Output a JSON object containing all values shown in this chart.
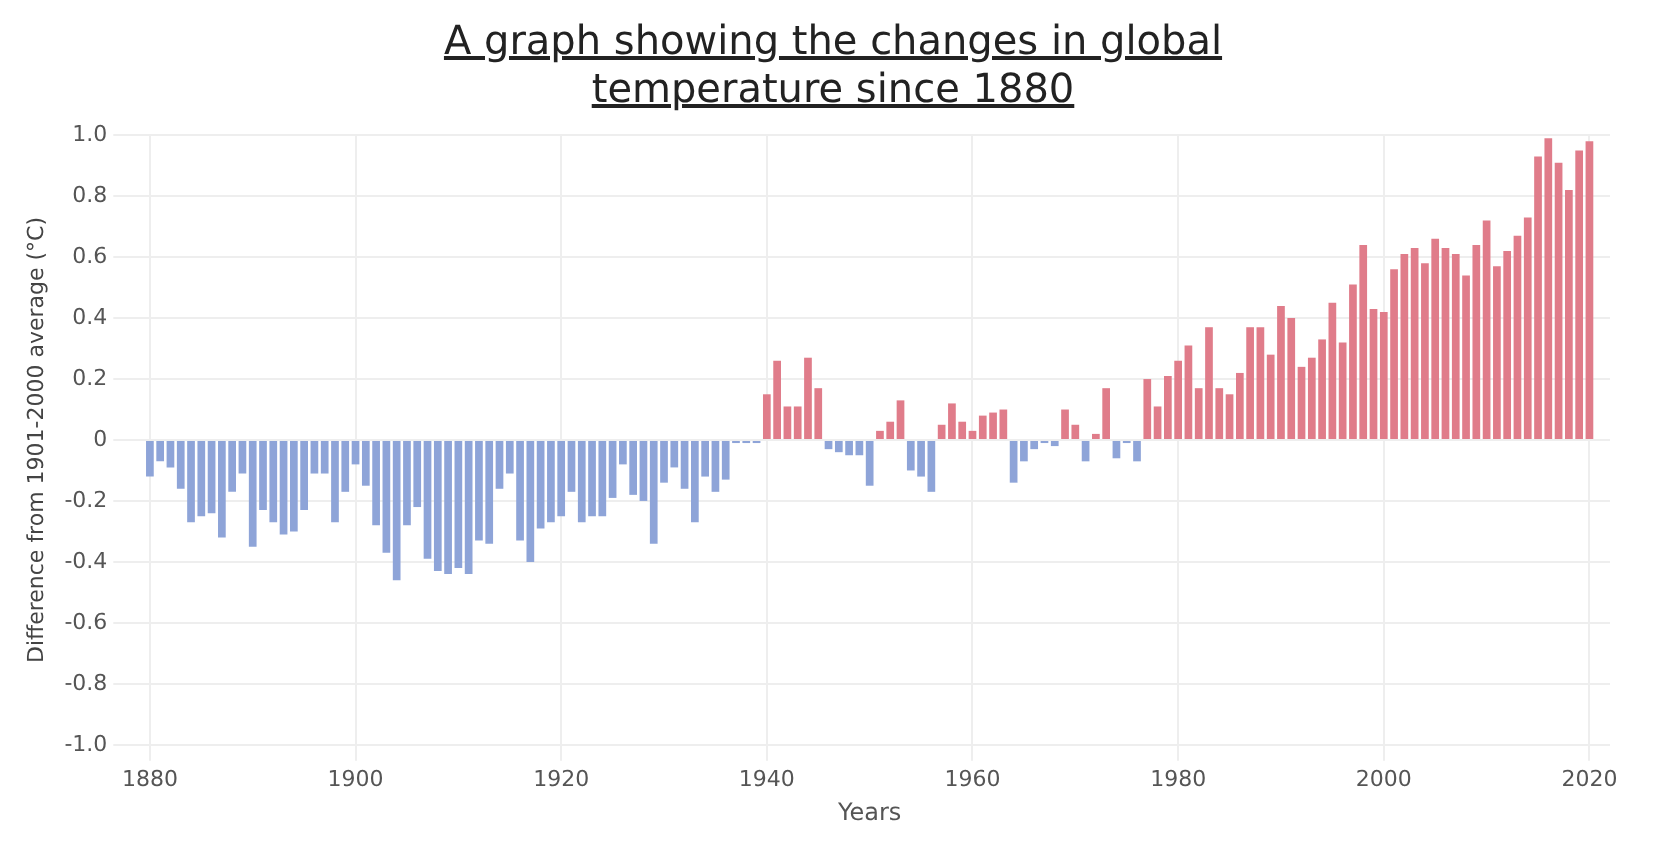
{
  "chart_data": {
    "type": "bar",
    "title": "A graph showing the changes in global temperature since 1880",
    "xlabel": "Years",
    "ylabel": "Difference from 1901-2000 average (°C)",
    "x": [
      1880,
      1881,
      1882,
      1883,
      1884,
      1885,
      1886,
      1887,
      1888,
      1889,
      1890,
      1891,
      1892,
      1893,
      1894,
      1895,
      1896,
      1897,
      1898,
      1899,
      1900,
      1901,
      1902,
      1903,
      1904,
      1905,
      1906,
      1907,
      1908,
      1909,
      1910,
      1911,
      1912,
      1913,
      1914,
      1915,
      1916,
      1917,
      1918,
      1919,
      1920,
      1921,
      1922,
      1923,
      1924,
      1925,
      1926,
      1927,
      1928,
      1929,
      1930,
      1931,
      1932,
      1933,
      1934,
      1935,
      1936,
      1937,
      1938,
      1939,
      1940,
      1941,
      1942,
      1943,
      1944,
      1945,
      1946,
      1947,
      1948,
      1949,
      1950,
      1951,
      1952,
      1953,
      1954,
      1955,
      1956,
      1957,
      1958,
      1959,
      1960,
      1961,
      1962,
      1963,
      1964,
      1965,
      1966,
      1967,
      1968,
      1969,
      1970,
      1971,
      1972,
      1973,
      1974,
      1975,
      1976,
      1977,
      1978,
      1979,
      1980,
      1981,
      1982,
      1983,
      1984,
      1985,
      1986,
      1987,
      1988,
      1989,
      1990,
      1991,
      1992,
      1993,
      1994,
      1995,
      1996,
      1997,
      1998,
      1999,
      2000,
      2001,
      2002,
      2003,
      2004,
      2005,
      2006,
      2007,
      2008,
      2009,
      2010,
      2011,
      2012,
      2013,
      2014,
      2015,
      2016,
      2017,
      2018,
      2019,
      2020
    ],
    "values": [
      -0.12,
      -0.07,
      -0.09,
      -0.16,
      -0.27,
      -0.25,
      -0.24,
      -0.32,
      -0.17,
      -0.11,
      -0.35,
      -0.23,
      -0.27,
      -0.31,
      -0.3,
      -0.23,
      -0.11,
      -0.11,
      -0.27,
      -0.17,
      -0.08,
      -0.15,
      -0.28,
      -0.37,
      -0.46,
      -0.28,
      -0.22,
      -0.39,
      -0.43,
      -0.44,
      -0.42,
      -0.44,
      -0.33,
      -0.34,
      -0.16,
      -0.11,
      -0.33,
      -0.4,
      -0.29,
      -0.27,
      -0.25,
      -0.17,
      -0.27,
      -0.25,
      -0.25,
      -0.19,
      -0.08,
      -0.18,
      -0.2,
      -0.34,
      -0.14,
      -0.09,
      -0.16,
      -0.27,
      -0.12,
      -0.17,
      -0.13,
      -0.01,
      -0.01,
      -0.01,
      0.15,
      0.26,
      0.11,
      0.11,
      0.27,
      0.17,
      -0.03,
      -0.04,
      -0.05,
      -0.05,
      -0.15,
      0.03,
      0.06,
      0.13,
      -0.1,
      -0.12,
      -0.17,
      0.05,
      0.12,
      0.06,
      0.03,
      0.08,
      0.09,
      0.1,
      -0.14,
      -0.07,
      -0.03,
      -0.01,
      -0.02,
      0.1,
      0.05,
      -0.07,
      0.02,
      0.17,
      -0.06,
      -0.01,
      -0.07,
      0.2,
      0.11,
      0.21,
      0.26,
      0.31,
      0.17,
      0.37,
      0.17,
      0.15,
      0.22,
      0.37,
      0.37,
      0.28,
      0.44,
      0.4,
      0.24,
      0.27,
      0.33,
      0.45,
      0.32,
      0.51,
      0.64,
      0.43,
      0.42,
      0.56,
      0.61,
      0.63,
      0.58,
      0.66,
      0.63,
      0.61,
      0.54,
      0.64,
      0.72,
      0.57,
      0.62,
      0.67,
      0.73,
      0.93,
      0.99,
      0.91,
      0.82,
      0.95,
      0.98
    ],
    "colors": [
      "#8ea4d8",
      "#8ea4d8",
      "#8ea4d8",
      "#8ea4d8",
      "#8ea4d8",
      "#8ea4d8",
      "#8ea4d8",
      "#8ea4d8",
      "#8ea4d8",
      "#8ea4d8",
      "#8ea4d8",
      "#8ea4d8",
      "#8ea4d8",
      "#8ea4d8",
      "#8ea4d8",
      "#8ea4d8",
      "#8ea4d8",
      "#8ea4d8",
      "#8ea4d8",
      "#8ea4d8",
      "#8ea4d8",
      "#8ea4d8",
      "#8ea4d8",
      "#8ea4d8",
      "#8ea4d8",
      "#8ea4d8",
      "#8ea4d8",
      "#8ea4d8",
      "#8ea4d8",
      "#8ea4d8",
      "#8ea4d8",
      "#8ea4d8",
      "#8ea4d8",
      "#8ea4d8",
      "#8ea4d8",
      "#8ea4d8",
      "#8ea4d8",
      "#8ea4d8",
      "#8ea4d8",
      "#8ea4d8",
      "#8ea4d8",
      "#8ea4d8",
      "#8ea4d8",
      "#8ea4d8",
      "#8ea4d8",
      "#8ea4d8",
      "#8ea4d8",
      "#8ea4d8",
      "#8ea4d8",
      "#8ea4d8",
      "#8ea4d8",
      "#8ea4d8",
      "#8ea4d8",
      "#8ea4d8",
      "#8ea4d8",
      "#8ea4d8",
      "#8ea4d8",
      "#8ea4d8",
      "#8ea4d8",
      "#8ea4d8",
      "#e07c8a",
      "#e07c8a",
      "#e07c8a",
      "#e07c8a",
      "#e07c8a",
      "#e07c8a",
      "#8ea4d8",
      "#8ea4d8",
      "#8ea4d8",
      "#8ea4d8",
      "#8ea4d8",
      "#e07c8a",
      "#e07c8a",
      "#e07c8a",
      "#8ea4d8",
      "#8ea4d8",
      "#8ea4d8",
      "#e07c8a",
      "#e07c8a",
      "#e07c8a",
      "#e07c8a",
      "#e07c8a",
      "#e07c8a",
      "#e07c8a",
      "#8ea4d8",
      "#8ea4d8",
      "#8ea4d8",
      "#8ea4d8",
      "#8ea4d8",
      "#e07c8a",
      "#e07c8a",
      "#8ea4d8",
      "#e07c8a",
      "#e07c8a",
      "#8ea4d8",
      "#8ea4d8",
      "#8ea4d8",
      "#e07c8a",
      "#e07c8a",
      "#e07c8a",
      "#e07c8a",
      "#e07c8a",
      "#e07c8a",
      "#e07c8a",
      "#e07c8a",
      "#e07c8a",
      "#e07c8a",
      "#e07c8a",
      "#e07c8a",
      "#e07c8a",
      "#e07c8a",
      "#e07c8a",
      "#e07c8a",
      "#e07c8a",
      "#e07c8a",
      "#e07c8a",
      "#e07c8a",
      "#e07c8a",
      "#e07c8a",
      "#e07c8a",
      "#e07c8a",
      "#e07c8a",
      "#e07c8a",
      "#e07c8a",
      "#e07c8a",
      "#e07c8a",
      "#e07c8a",
      "#e07c8a",
      "#e07c8a",
      "#e07c8a",
      "#e07c8a",
      "#e07c8a",
      "#e07c8a",
      "#e07c8a",
      "#e07c8a",
      "#e07c8a",
      "#e07c8a",
      "#e07c8a",
      "#e07c8a",
      "#e07c8a",
      "#e07c8a"
    ],
    "xlim": [
      1878,
      2022
    ],
    "xticks": [
      1880,
      1900,
      1920,
      1940,
      1960,
      1980,
      2000,
      2020
    ],
    "ylim": [
      -1,
      1
    ],
    "yticks": [
      {
        "value": -1,
        "label": "-1.0"
      },
      {
        "value": -0.8,
        "label": "-0.8"
      },
      {
        "value": -0.6,
        "label": "-0.6"
      },
      {
        "value": -0.4,
        "label": "-0.4"
      },
      {
        "value": -0.2,
        "label": "-0.2"
      },
      0,
      {
        "value": 0.2,
        "label": "0.2"
      },
      {
        "value": 0.4,
        "label": "0.4"
      },
      {
        "value": 0.6,
        "label": "0.6"
      },
      {
        "value": 0.8,
        "label": "0.8"
      },
      {
        "value": 1,
        "label": "1.0"
      }
    ],
    "grid": true,
    "legend": false
  }
}
